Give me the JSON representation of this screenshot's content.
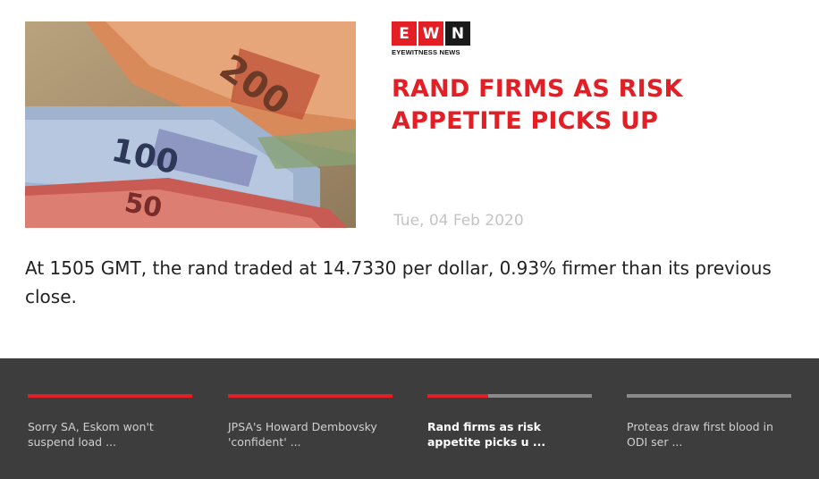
{
  "article": {
    "logo": {
      "letters": [
        "E",
        "W",
        "N"
      ],
      "tagline": "EYEWITNESS NEWS"
    },
    "headline": "RAND FIRMS AS RISK APPETITE PICKS UP",
    "date": "Tue, 04 Feb 2020",
    "summary": "At 1505 GMT, the rand traded at 14.7330 per dollar, 0.93% firmer than its previous close.",
    "image": {
      "banknote_labels": [
        "200",
        "100",
        "50"
      ]
    }
  },
  "stories": [
    {
      "title": "Sorry SA, Eskom won't suspend load ...",
      "progress": 1.0,
      "active": false
    },
    {
      "title": "JPSA's Howard Dembovsky 'confident' ...",
      "progress": 1.0,
      "active": false
    },
    {
      "title": "Rand firms as risk appetite picks u ...",
      "progress": 0.37,
      "active": true
    },
    {
      "title": "Proteas draw first blood in ODI ser ...",
      "progress": 0.0,
      "active": false
    }
  ],
  "colors": {
    "brand_red": "#e31e24",
    "story_bar_bg": "#3d3d3d",
    "date_gray": "#c4c4c4"
  }
}
